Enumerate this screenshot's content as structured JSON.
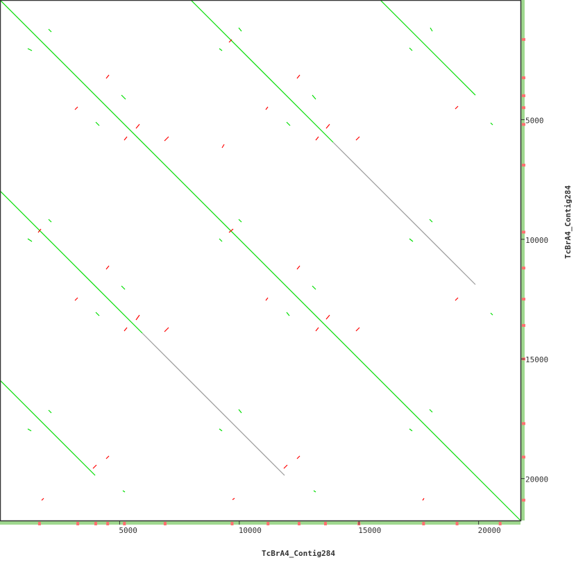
{
  "chart_data": {
    "type": "dotplot",
    "xlabel": "TcBrA4_Contig284",
    "ylabel": "TcBrA4_Contig284",
    "xlim": [
      0,
      21750
    ],
    "ylim": [
      0,
      21750
    ],
    "y_inverted": true,
    "x_ticks": [
      5000,
      10000,
      15000,
      20000
    ],
    "y_ticks": [
      5000,
      10000,
      15000,
      20000
    ],
    "grid": false,
    "colors": {
      "forward": "#00dd00",
      "reverse": "#ff0000",
      "weak": "#999999",
      "axis": "#333333",
      "coverage": "#9fd88f",
      "coverage_reverse": "#ff7070"
    },
    "long_alignments": [
      {
        "kind": "forward",
        "seg": [
          0,
          0,
          21750,
          21750
        ]
      },
      {
        "kind": "forward",
        "seg": [
          7975,
          0,
          13920,
          5945
        ]
      },
      {
        "kind": "weak",
        "seg": [
          13920,
          5945,
          19865,
          11890
        ]
      },
      {
        "kind": "forward",
        "seg": [
          0,
          7975,
          5945,
          13920
        ]
      },
      {
        "kind": "weak",
        "seg": [
          5945,
          13920,
          11890,
          19865
        ]
      },
      {
        "kind": "forward",
        "seg": [
          0,
          15890,
          3975,
          19865
        ]
      },
      {
        "kind": "forward",
        "seg": [
          15890,
          0,
          19865,
          3975
        ]
      }
    ],
    "forward_short": [
      [
        2030,
        1218,
        2146,
        1334
      ],
      [
        1160,
        2030,
        1334,
        2117
      ],
      [
        5075,
        3973,
        5249,
        4147
      ],
      [
        4002,
        5104,
        4147,
        5249
      ],
      [
        9976,
        1160,
        10092,
        1305
      ],
      [
        9164,
        2030,
        9280,
        2117
      ],
      [
        13050,
        3973,
        13195,
        4147
      ],
      [
        11977,
        5104,
        12122,
        5249
      ],
      [
        17980,
        1160,
        18067,
        1305
      ],
      [
        17110,
        2001,
        17226,
        2117
      ],
      [
        20503,
        5133,
        20590,
        5220
      ],
      [
        2030,
        9164,
        2146,
        9280
      ],
      [
        1160,
        9976,
        1334,
        10092
      ],
      [
        5075,
        11948,
        5220,
        12093
      ],
      [
        4002,
        13050,
        4147,
        13195
      ],
      [
        9976,
        9164,
        10092,
        9280
      ],
      [
        9164,
        9976,
        9280,
        10092
      ],
      [
        13050,
        11948,
        13195,
        12093
      ],
      [
        11977,
        13050,
        12093,
        13195
      ],
      [
        17951,
        9164,
        18067,
        9280
      ],
      [
        17110,
        9976,
        17255,
        10092
      ],
      [
        20503,
        13079,
        20590,
        13166
      ],
      [
        2030,
        17139,
        2146,
        17255
      ],
      [
        1160,
        17922,
        1305,
        18009
      ],
      [
        9976,
        17110,
        10092,
        17255
      ],
      [
        9164,
        17922,
        9280,
        18009
      ],
      [
        17951,
        17110,
        18067,
        17226
      ],
      [
        17110,
        17922,
        17226,
        18009
      ],
      [
        5133,
        20503,
        5220,
        20561
      ],
      [
        13108,
        20503,
        13195,
        20561
      ]
    ],
    "reverse_short": [
      [
        4553,
        3132,
        4437,
        3277
      ],
      [
        3248,
        4466,
        3132,
        4582
      ],
      [
        5829,
        5191,
        5684,
        5365
      ],
      [
        5307,
        5713,
        5191,
        5858
      ],
      [
        7047,
        5713,
        6873,
        5887
      ],
      [
        9367,
        6032,
        9280,
        6177
      ],
      [
        9686,
        1653,
        9570,
        1769
      ],
      [
        12528,
        3132,
        12412,
        3277
      ],
      [
        11194,
        4466,
        11107,
        4582
      ],
      [
        13775,
        5191,
        13630,
        5365
      ],
      [
        13311,
        5713,
        13195,
        5858
      ],
      [
        15022,
        5713,
        14877,
        5858
      ],
      [
        19140,
        4437,
        19024,
        4553
      ],
      [
        4553,
        11107,
        4437,
        11252
      ],
      [
        3248,
        12441,
        3132,
        12557
      ],
      [
        5829,
        13166,
        5684,
        13369
      ],
      [
        5307,
        13688,
        5191,
        13833
      ],
      [
        7047,
        13688,
        6873,
        13862
      ],
      [
        1711,
        9570,
        1595,
        9715
      ],
      [
        9744,
        9570,
        9570,
        9715
      ],
      [
        12528,
        11107,
        12412,
        11252
      ],
      [
        11194,
        12441,
        11107,
        12557
      ],
      [
        13775,
        13166,
        13630,
        13340
      ],
      [
        13311,
        13688,
        13195,
        13833
      ],
      [
        15022,
        13688,
        14877,
        13833
      ],
      [
        19140,
        12441,
        19024,
        12557
      ],
      [
        4553,
        19053,
        4437,
        19169
      ],
      [
        4031,
        19430,
        3886,
        19575
      ],
      [
        12528,
        19053,
        12412,
        19169
      ],
      [
        12006,
        19430,
        11861,
        19575
      ],
      [
        1827,
        20822,
        1740,
        20909
      ],
      [
        9802,
        20822,
        9715,
        20880
      ],
      [
        17719,
        20822,
        17661,
        20909
      ]
    ],
    "coverage_reverse_positions": [
      1650,
      3250,
      4000,
      4500,
      5200,
      6900,
      9700,
      11200,
      12500,
      13600,
      15000,
      17700,
      19100,
      20900
    ]
  }
}
